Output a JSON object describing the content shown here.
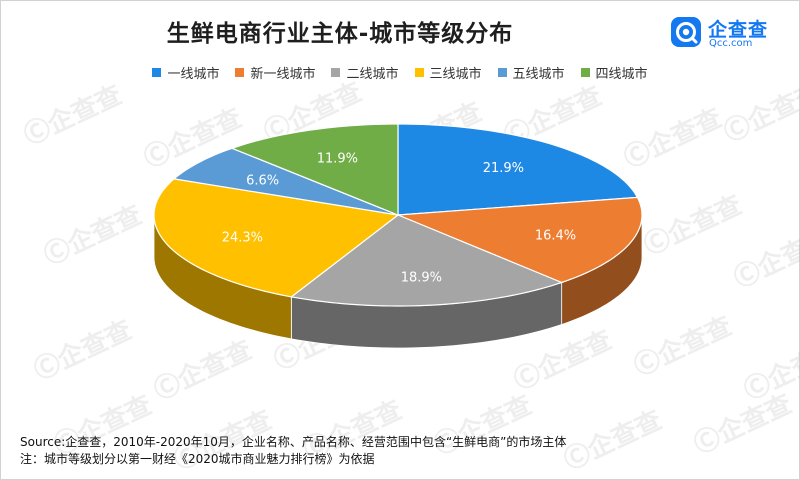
{
  "title": "生鲜电商行业主体-城市等级分布",
  "logo": {
    "name": "企查查",
    "domain": "Qcc.com",
    "icon": "qcc-logo-icon"
  },
  "watermark": "企查查",
  "colors": {
    "一线城市": "#1e88e5",
    "新一线城市": "#ed7d31",
    "二线城市": "#a5a5a5",
    "三线城市": "#ffc000",
    "五线城市": "#5b9bd5",
    "四线城市": "#70ad47"
  },
  "chart_data": {
    "type": "pie",
    "title": "生鲜电商行业主体-城市等级分布",
    "legend_position": "top",
    "style": "3d",
    "slices": [
      {
        "label": "一线城市",
        "value": 21.9,
        "display": "21.9%"
      },
      {
        "label": "新一线城市",
        "value": 16.4,
        "display": "16.4%"
      },
      {
        "label": "二线城市",
        "value": 18.9,
        "display": "18.9%"
      },
      {
        "label": "三线城市",
        "value": 24.3,
        "display": "24.3%"
      },
      {
        "label": "五线城市",
        "value": 6.6,
        "display": "6.6%"
      },
      {
        "label": "四线城市",
        "value": 11.9,
        "display": "11.9%"
      }
    ]
  },
  "source": {
    "line1": "Source:企查查，2010年-2020年10月，企业名称、产品名称、经营范围中包含“生鲜电商”的市场主体",
    "line2": "注：城市等级划分以第一财经《2020城市商业魅力排行榜》为依据"
  }
}
